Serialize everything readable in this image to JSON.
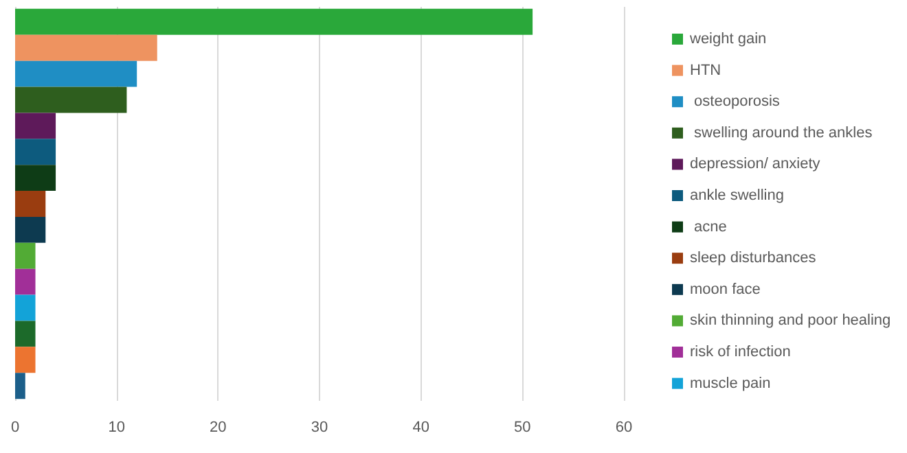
{
  "chart_data": {
    "type": "bar",
    "orientation": "horizontal",
    "categories": [
      null
    ],
    "series": [
      {
        "name": "weight gain",
        "color": "#2aa83a",
        "values": [
          51
        ]
      },
      {
        "name": "HTN",
        "color": "#ee9360",
        "values": [
          14
        ]
      },
      {
        "name": " osteoporosis",
        "color": "#1f8ec4",
        "values": [
          12
        ]
      },
      {
        "name": " swelling around the ankles",
        "color": "#2e5e1e",
        "values": [
          11
        ]
      },
      {
        "name": "depression/ anxiety",
        "color": "#5e1a5a",
        "values": [
          4
        ]
      },
      {
        "name": "ankle swelling",
        "color": "#0d5b7e",
        "values": [
          4
        ]
      },
      {
        "name": " acne",
        "color": "#0e3c16",
        "values": [
          4
        ]
      },
      {
        "name": "sleep disturbances",
        "color": "#9a3d10",
        "values": [
          3
        ]
      },
      {
        "name": "moon face",
        "color": "#0d3a50",
        "values": [
          3
        ]
      },
      {
        "name": "skin thinning and poor healing",
        "color": "#52ab35",
        "values": [
          2
        ]
      },
      {
        "name": "risk of infection",
        "color": "#a12f98",
        "values": [
          2
        ]
      },
      {
        "name": "muscle pain",
        "color": "#13a3d8",
        "values": [
          2
        ]
      },
      {
        "color": "#1c6a2a",
        "values": [
          2
        ]
      },
      {
        "color": "#ec7430",
        "values": [
          2
        ]
      },
      {
        "color": "#1c5f8a",
        "values": [
          1
        ]
      }
    ],
    "xlim": [
      0,
      60
    ],
    "xticks": [
      0,
      10,
      20,
      30,
      40,
      50,
      60
    ],
    "grid": "x",
    "legend": "right"
  }
}
